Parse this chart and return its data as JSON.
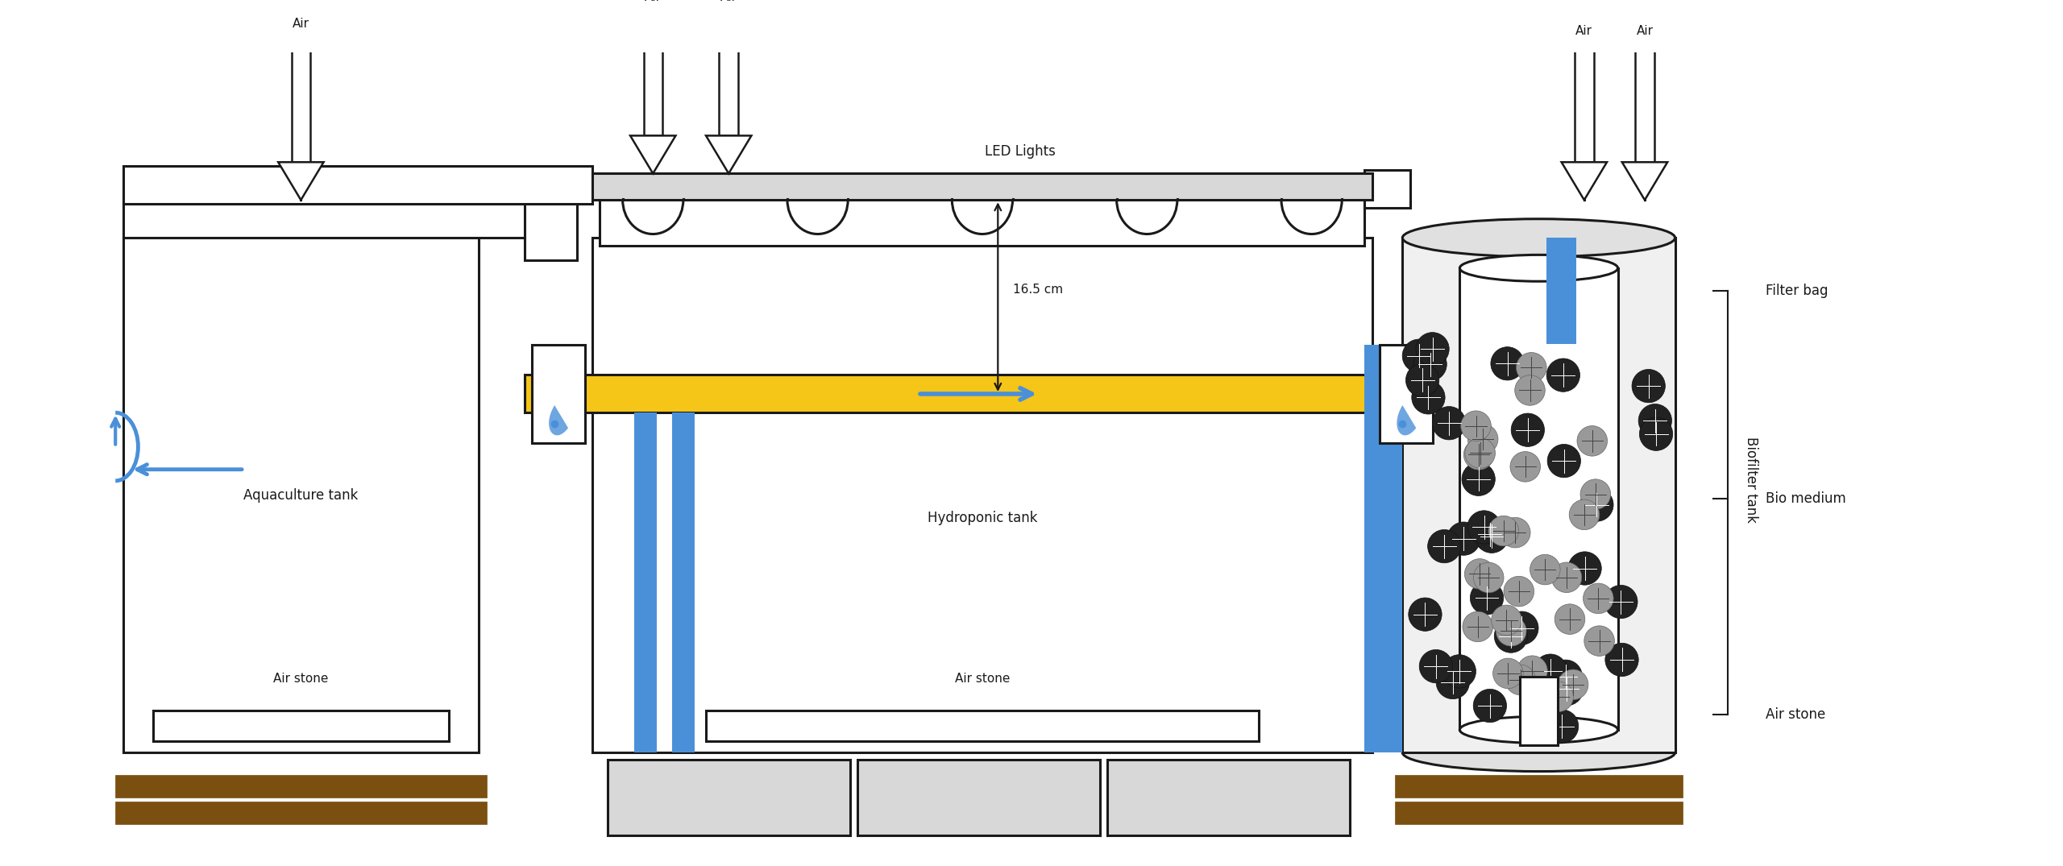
{
  "bg_color": "#ffffff",
  "line_color": "#1a1a1a",
  "blue_color": "#4a90d9",
  "yellow_color": "#f5c518",
  "brown_color": "#7B4F10",
  "light_gray": "#d8d8d8",
  "cyl_fill": "#f2f2f2",
  "inner_fill": "#e8e8e8",
  "lw": 2.2,
  "labels": {
    "aquaculture_tank": "Aquaculture tank",
    "hydroponic_tank": "Hydroponic tank",
    "biofilter_tank": "Biofilter tank",
    "air_stone_aq": "Air stone",
    "air_stone_ht": "Air stone",
    "air_stone_bf": "Air stone",
    "led_lights": "LED Lights",
    "measurement": "16.5 cm",
    "filter_bag": "Filter bag",
    "bio_medium": "Bio medium"
  },
  "figsize": [
    25.6,
    10.75
  ],
  "dpi": 100
}
